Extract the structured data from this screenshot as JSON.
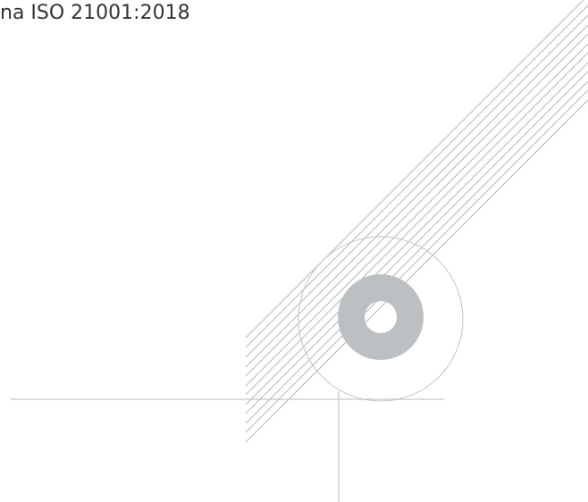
{
  "header": {
    "text": "na ISO 21001:2018"
  }
}
